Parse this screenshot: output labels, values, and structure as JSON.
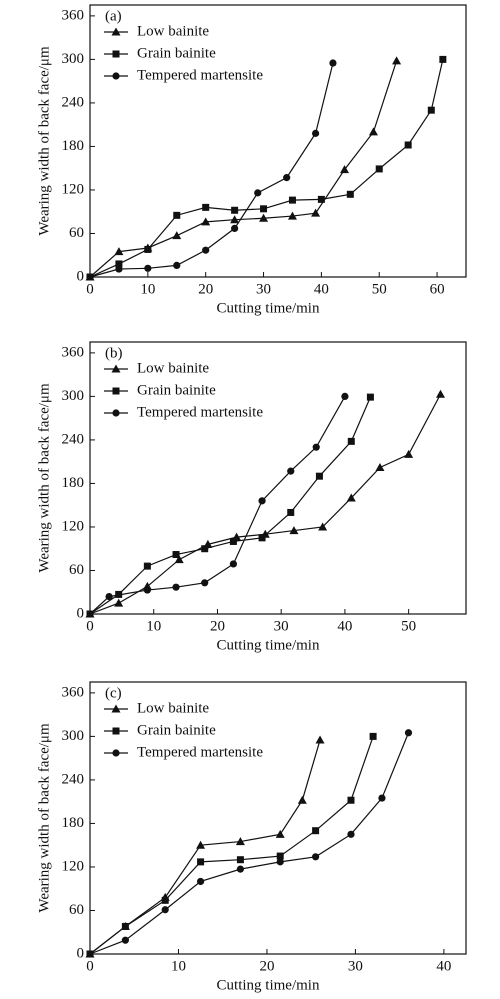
{
  "chart_data": [
    {
      "type": "line",
      "panel_label": "(a)",
      "x_label": "Cutting time/min",
      "y_label": "Wearing width of back face/μm",
      "xlim": [
        0,
        65
      ],
      "ylim": [
        0,
        375
      ],
      "xticks": [
        0,
        10,
        20,
        30,
        40,
        50,
        60
      ],
      "yticks": [
        0,
        60,
        120,
        180,
        240,
        300,
        360
      ],
      "legend": "upper left",
      "series": [
        {
          "name": "Low bainite",
          "color": "#111111",
          "marker": "triangle",
          "x": [
            0,
            5,
            10,
            15,
            20,
            25,
            30,
            35,
            39,
            44,
            49,
            53
          ],
          "values": [
            0,
            35,
            40,
            57,
            76,
            79,
            81,
            84,
            88,
            148,
            200,
            298
          ]
        },
        {
          "name": "Grain bainite",
          "color": "#111111",
          "marker": "square",
          "x": [
            0,
            5,
            10,
            15,
            20,
            25,
            30,
            35,
            40,
            45,
            50,
            55,
            59,
            61
          ],
          "values": [
            0,
            18,
            38,
            85,
            96,
            92,
            94,
            106,
            107,
            114,
            149,
            182,
            230,
            300
          ]
        },
        {
          "name": "Tempered martensite",
          "color": "#111111",
          "marker": "circle",
          "x": [
            0,
            5,
            10,
            15,
            20,
            25,
            29,
            34,
            39,
            42
          ],
          "values": [
            0,
            11,
            12,
            16,
            37,
            67,
            116,
            137,
            198,
            295
          ]
        }
      ]
    },
    {
      "type": "line",
      "panel_label": "(b)",
      "x_label": "Cutting time/min",
      "y_label": "Wearing width of back face/μm",
      "xlim": [
        0,
        59
      ],
      "ylim": [
        0,
        375
      ],
      "xticks": [
        0,
        10,
        20,
        30,
        40,
        50
      ],
      "yticks": [
        0,
        60,
        120,
        180,
        240,
        300,
        360
      ],
      "legend": "upper left",
      "series": [
        {
          "name": "Low bainite",
          "color": "#111111",
          "marker": "triangle",
          "x": [
            0,
            4.5,
            9,
            14,
            18.5,
            23,
            27.5,
            32,
            36.5,
            41,
            45.5,
            50,
            55
          ],
          "values": [
            0,
            15,
            38,
            75,
            96,
            106,
            110,
            115,
            120,
            160,
            202,
            220,
            303
          ]
        },
        {
          "name": "Grain bainite",
          "color": "#111111",
          "marker": "square",
          "x": [
            0,
            4.5,
            9,
            13.5,
            18,
            22.5,
            27,
            31.5,
            36,
            41,
            44
          ],
          "values": [
            0,
            27,
            66,
            82,
            90,
            100,
            105,
            140,
            190,
            238,
            299
          ]
        },
        {
          "name": "Tempered martensite",
          "color": "#111111",
          "marker": "circle",
          "x": [
            0,
            3,
            9,
            13.5,
            18,
            22.5,
            27,
            31.5,
            35.5,
            40
          ],
          "values": [
            0,
            24,
            33,
            37,
            43,
            69,
            156,
            197,
            230,
            300
          ]
        }
      ]
    },
    {
      "type": "line",
      "panel_label": "(c)",
      "x_label": "Cutting time/min",
      "y_label": "Wearing width of back face/μm",
      "xlim": [
        0,
        42.5
      ],
      "ylim": [
        0,
        375
      ],
      "xticks": [
        0,
        10,
        20,
        30,
        40
      ],
      "yticks": [
        0,
        60,
        120,
        180,
        240,
        300,
        360
      ],
      "legend": "upper left",
      "series": [
        {
          "name": "Low bainite",
          "color": "#111111",
          "marker": "triangle",
          "x": [
            0,
            4,
            8.5,
            12.5,
            17,
            21.5,
            24,
            26
          ],
          "values": [
            0,
            38,
            78,
            150,
            155,
            165,
            212,
            295
          ]
        },
        {
          "name": "Grain bainite",
          "color": "#111111",
          "marker": "square",
          "x": [
            0,
            4,
            8.5,
            12.5,
            17,
            21.5,
            25.5,
            29.5,
            32
          ],
          "values": [
            0,
            38,
            74,
            127,
            130,
            135,
            170,
            212,
            300
          ]
        },
        {
          "name": "Tempered martensite",
          "color": "#111111",
          "marker": "circle",
          "x": [
            0,
            4,
            8.5,
            12.5,
            17,
            21.5,
            25.5,
            29.5,
            33,
            36
          ],
          "values": [
            0,
            19,
            61,
            100,
            117,
            127,
            134,
            165,
            215,
            305
          ]
        }
      ]
    }
  ]
}
